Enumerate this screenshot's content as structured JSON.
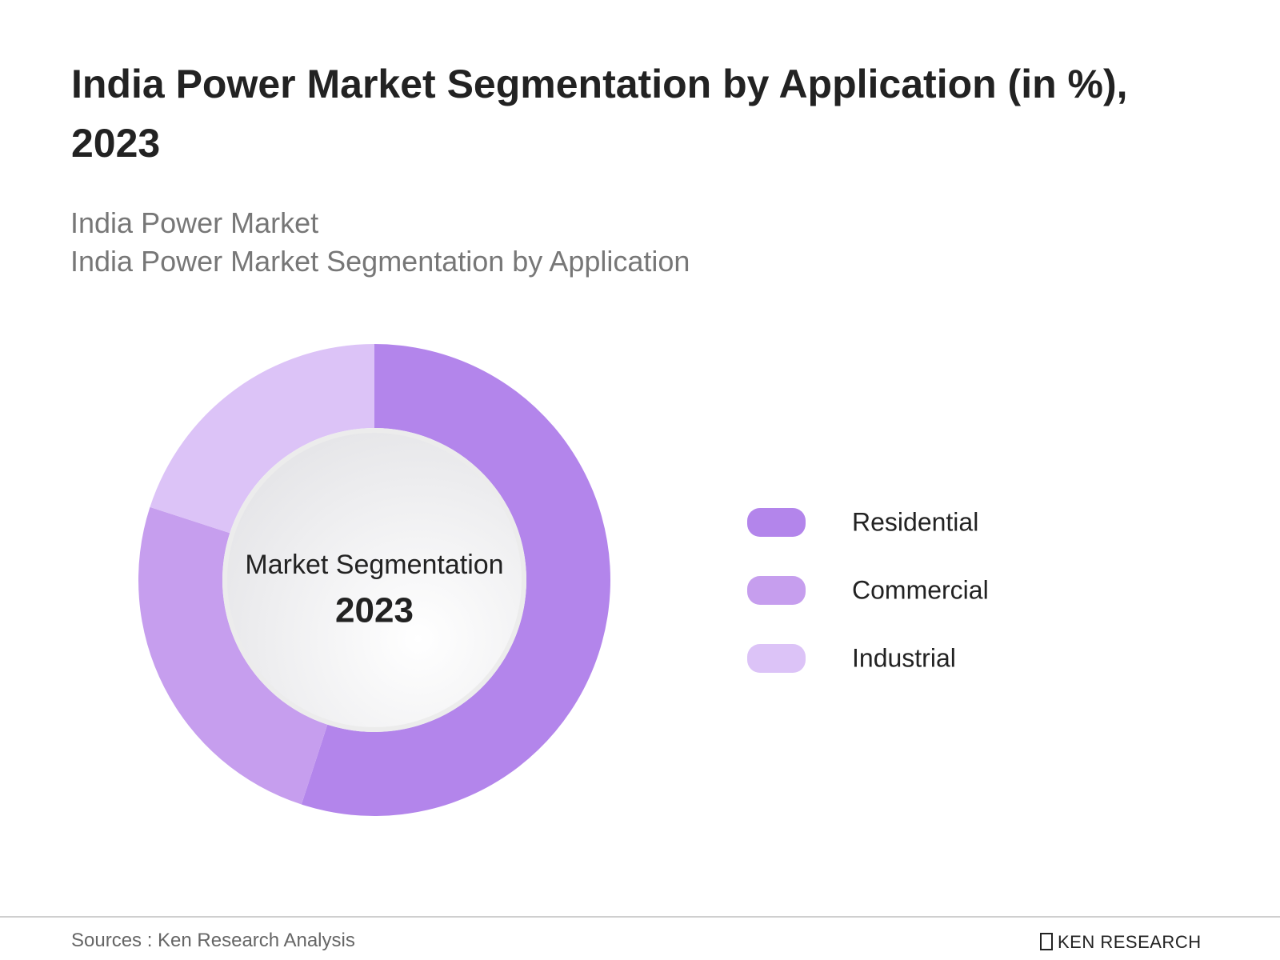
{
  "chart_data": {
    "type": "pie",
    "title": "India Power Market Segmentation by Application (in %), 2023",
    "subtitle": [
      "India Power Market",
      "India Power Market Segmentation by Application"
    ],
    "center_label": "Market Segmentation",
    "center_year": "2023",
    "categories": [
      "Residential",
      "Commercial",
      "Industrial"
    ],
    "values": [
      55,
      25,
      20
    ],
    "colors": [
      "#b385eb",
      "#c69eee",
      "#dcc3f7"
    ],
    "legend": "right",
    "source": "Sources : Ken Research Analysis",
    "brand": "KEN RESEARCH"
  }
}
